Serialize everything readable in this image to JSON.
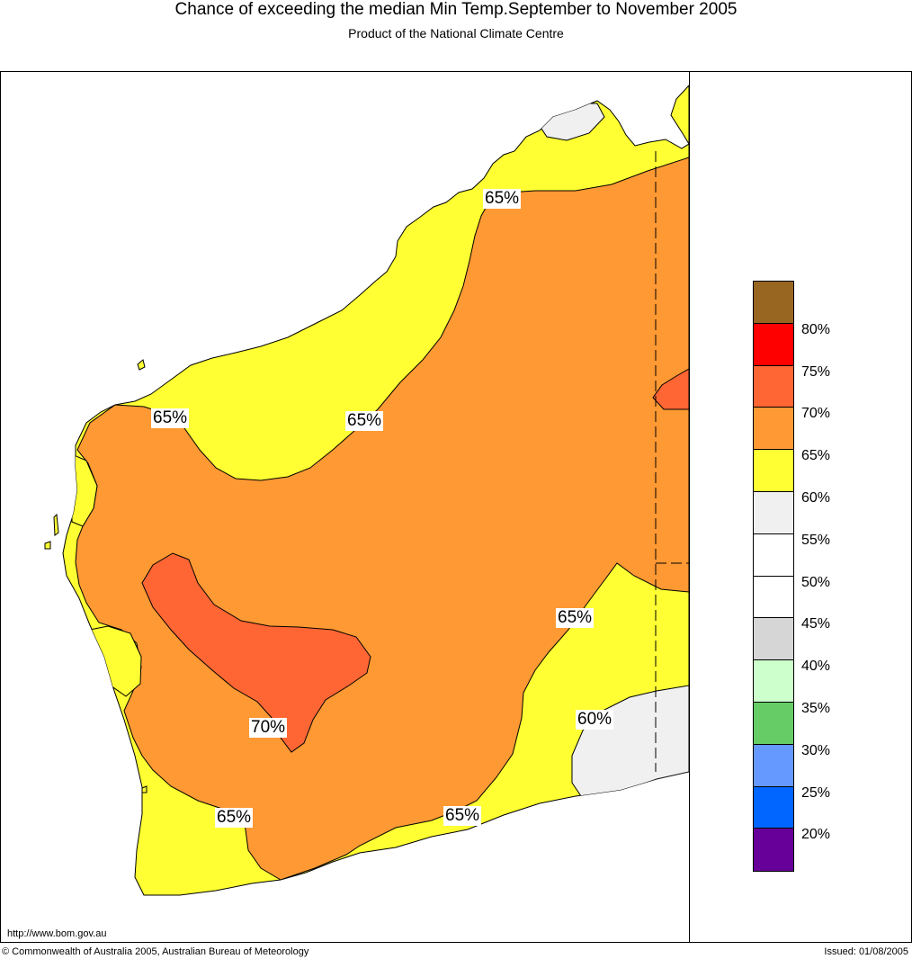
{
  "header": {
    "title": "Chance of exceeding the median Min Temp.September to November 2005",
    "subtitle": "Product of the National Climate Centre"
  },
  "map": {
    "region": "Western Australia",
    "zone_colors": {
      "55-60": "#f0f0f0",
      "60-65": "#ffff33",
      "65-70": "#ff9933",
      "70-75": "#ff6633",
      "ocean": "#ffffff"
    },
    "contour_labels": [
      "65%",
      "65%",
      "65%",
      "65%",
      "70%",
      "60%",
      "65%",
      "65%"
    ]
  },
  "legend": {
    "colors": [
      "#996622",
      "#ff0000",
      "#ff6633",
      "#ff9933",
      "#ffff33",
      "#f0f0f0",
      "#ffffff",
      "#ffffff",
      "#d6d6d6",
      "#ccffcc",
      "#66cc66",
      "#6699ff",
      "#0066ff",
      "#660099"
    ],
    "ticks": [
      "80%",
      "75%",
      "70%",
      "65%",
      "60%",
      "55%",
      "50%",
      "45%",
      "40%",
      "35%",
      "30%",
      "25%",
      "20%"
    ]
  },
  "footer": {
    "url": "http://www.bom.gov.au",
    "copyright": "© Commonwealth of Australia 2005, Australian Bureau of Meteorology",
    "issued": "Issued: 01/08/2005"
  }
}
